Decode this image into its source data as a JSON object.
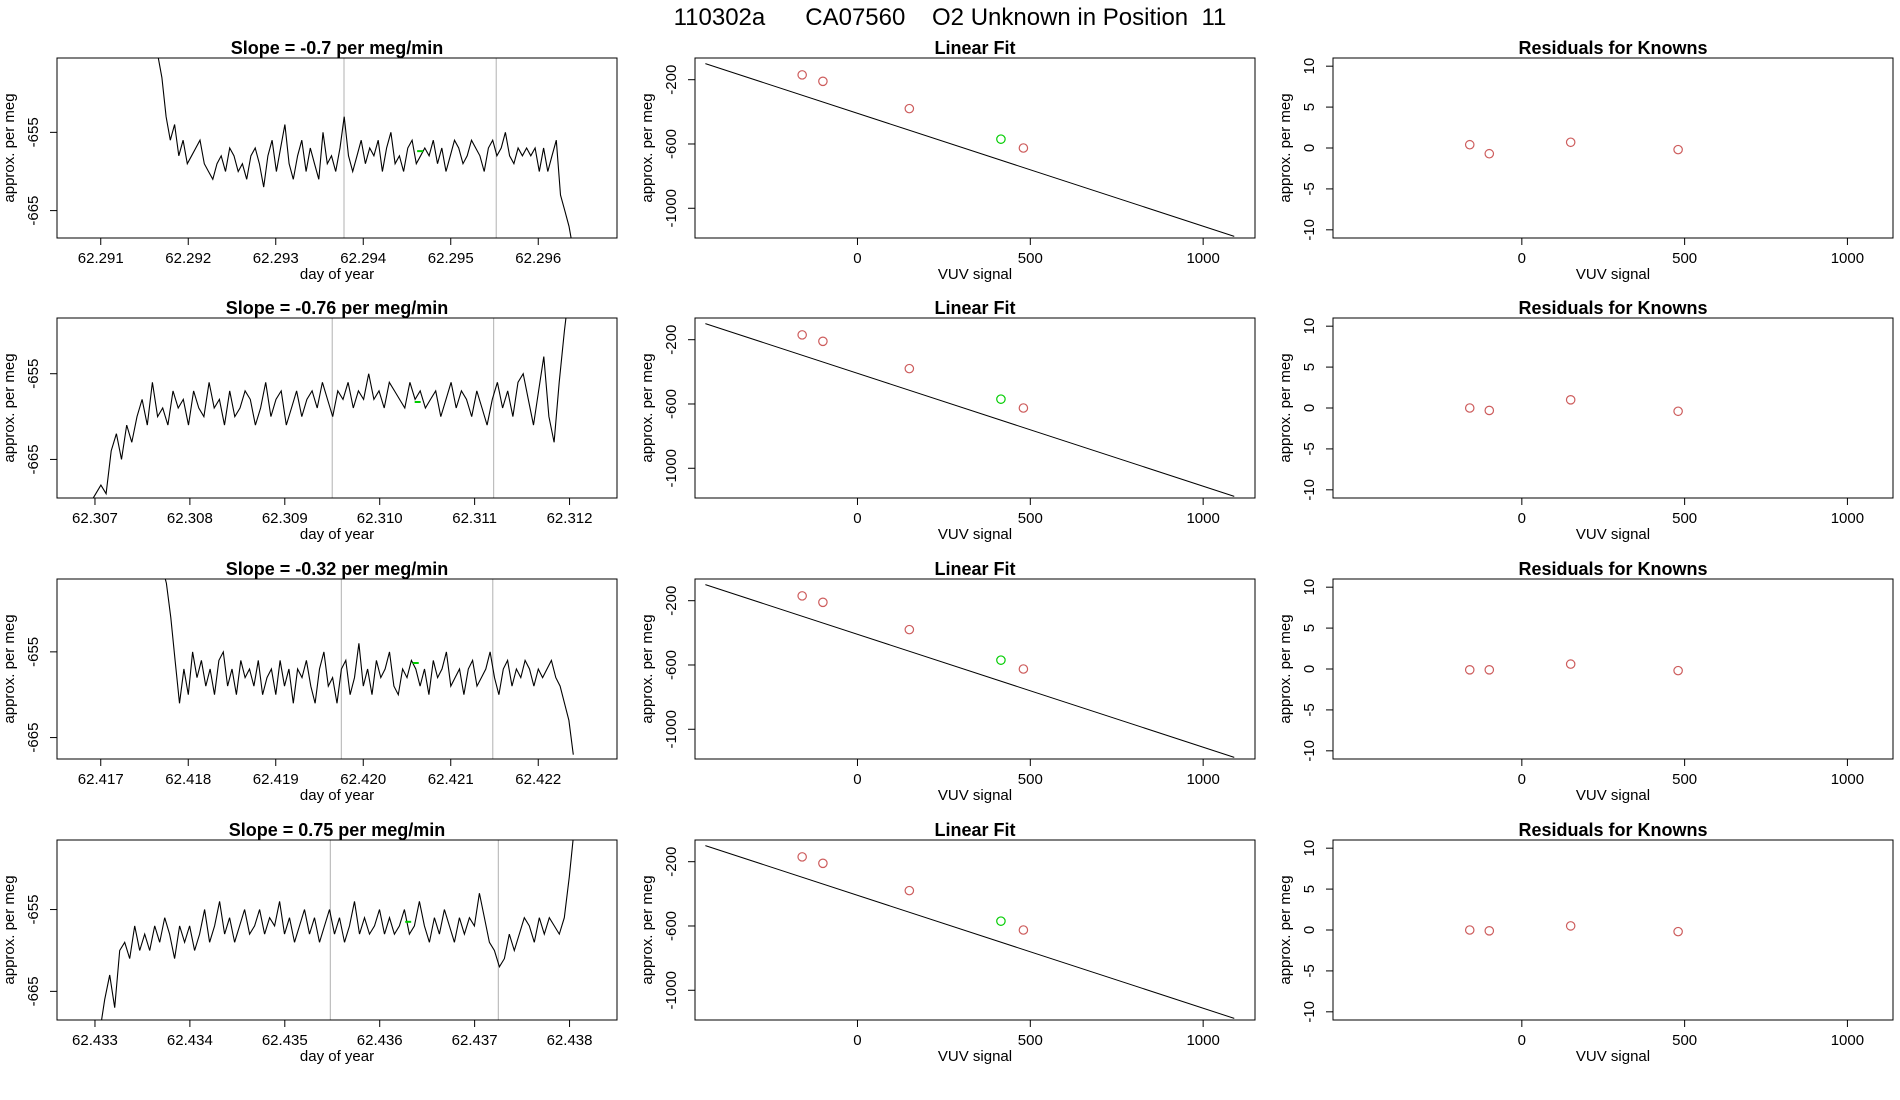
{
  "figure_title": "110302a      CA07560    O2 Unknown in Position  11",
  "colors": {
    "trace": "#000000",
    "vline": "#bebebe",
    "known": "#cd5c5c",
    "unknown": "#00cc00",
    "fitline": "#000000"
  },
  "chart_data": [
    {
      "type": "line",
      "title": "Slope =  -0.7  per meg/min",
      "xlabel": "day of year",
      "ylabel": "approx. per meg",
      "xlim": [
        62.2905,
        62.2969
      ],
      "ylim": [
        -668.5,
        -645.5
      ],
      "xticks": [
        "62.291",
        "62.292",
        "62.293",
        "62.294",
        "62.295",
        "62.296"
      ],
      "yticks": [
        "-665",
        "-655"
      ],
      "trace_start": 62.29165,
      "trace_end": 62.2964,
      "vlines": [
        62.29378,
        62.29552
      ],
      "unknown_point": {
        "x": 62.29465,
        "y": -657.4
      },
      "series": [
        {
          "values": [
            -645,
            -648,
            -653,
            -656,
            -654,
            -658,
            -656,
            -659,
            -658,
            -657,
            -656,
            -659,
            -660,
            -661,
            -659,
            -658,
            -660,
            -657,
            -658,
            -660,
            -659,
            -661,
            -658,
            -657,
            -659,
            -662,
            -658,
            -656,
            -660,
            -657,
            -654,
            -659,
            -661,
            -658,
            -656,
            -660,
            -657,
            -659,
            -661,
            -655,
            -659,
            -658,
            -660,
            -657,
            -653,
            -658,
            -660,
            -658,
            -656,
            -659,
            -657,
            -658,
            -656,
            -660,
            -657,
            -655,
            -659,
            -658,
            -660,
            -657,
            -656,
            -659,
            -658,
            -657,
            -658,
            -656,
            -659,
            -657,
            -660,
            -658,
            -656,
            -657,
            -659,
            -658,
            -656,
            -657,
            -658,
            -660,
            -657,
            -656,
            -658,
            -657,
            -655,
            -658,
            -659,
            -657,
            -658,
            -657,
            -658,
            -657,
            -660,
            -657,
            -660,
            -658,
            -656,
            -663,
            -665,
            -667,
            -670
          ]
        }
      ]
    },
    {
      "type": "line",
      "title": "Linear Fit",
      "xlabel": "VUV signal",
      "ylabel": "approx. per meg",
      "xlim": [
        -470,
        1150
      ],
      "ylim": [
        -1185,
        -65
      ],
      "xticks": [
        "0",
        "500",
        "1000"
      ],
      "yticks": [
        "-1000",
        "-600",
        "-200"
      ],
      "fit_line": {
        "x": [
          -440,
          1090
        ],
        "y": [
          -100,
          -1175
        ]
      },
      "knowns": [
        {
          "x": -160,
          "y": -170
        },
        {
          "x": -100,
          "y": -210
        },
        {
          "x": 150,
          "y": -380
        },
        {
          "x": 480,
          "y": -625
        }
      ],
      "unknown": {
        "x": 415,
        "y": -570
      }
    },
    {
      "type": "scatter",
      "title": "Residuals for Knowns",
      "xlabel": "VUV signal",
      "ylabel": "approx. per meg",
      "xlim": [
        -580,
        1140
      ],
      "ylim": [
        -11,
        11
      ],
      "xticks": [
        "0",
        "500",
        "1000"
      ],
      "yticks": [
        "-10",
        "-5",
        "0",
        "5",
        "10"
      ],
      "points": [
        {
          "x": -160,
          "y": 0.4
        },
        {
          "x": -100,
          "y": -0.7
        },
        {
          "x": 150,
          "y": 0.7
        },
        {
          "x": 480,
          "y": -0.2
        }
      ]
    },
    {
      "type": "line",
      "title": "Slope =  -0.76  per meg/min",
      "xlabel": "day of year",
      "ylabel": "approx. per meg",
      "xlim": [
        62.3066,
        62.3125
      ],
      "ylim": [
        -669.5,
        -648.5
      ],
      "xticks": [
        "62.307",
        "62.308",
        "62.309",
        "62.310",
        "62.311",
        "62.312"
      ],
      "yticks": [
        "-665",
        "-655"
      ],
      "trace_start": 62.3069,
      "trace_end": 62.312,
      "vlines": [
        62.3095,
        62.3112
      ],
      "unknown_point": {
        "x": 62.3104,
        "y": -658.3
      },
      "series": [
        {
          "values": [
            -670,
            -670,
            -669,
            -668,
            -669,
            -664,
            -662,
            -665,
            -661,
            -663,
            -660,
            -658,
            -661,
            -656,
            -660,
            -659,
            -661,
            -657,
            -659,
            -658,
            -661,
            -657,
            -659,
            -660,
            -656,
            -659,
            -658,
            -661,
            -657,
            -660,
            -659,
            -657,
            -658,
            -661,
            -659,
            -656,
            -660,
            -658,
            -657,
            -661,
            -659,
            -657,
            -660,
            -658,
            -657,
            -659,
            -656,
            -658,
            -660,
            -657,
            -658,
            -656,
            -659,
            -657,
            -658,
            -655,
            -658,
            -657,
            -659,
            -656,
            -657,
            -658,
            -659,
            -656,
            -658,
            -657,
            -659,
            -658,
            -657,
            -660,
            -658,
            -656,
            -659,
            -657,
            -658,
            -660,
            -657,
            -659,
            -661,
            -658,
            -656,
            -659,
            -657,
            -660,
            -656,
            -655,
            -658,
            -661,
            -657,
            -653,
            -660,
            -663,
            -656,
            -650,
            -645
          ]
        }
      ]
    },
    {
      "type": "line",
      "title": "Linear Fit",
      "xlabel": "VUV signal",
      "ylabel": "approx. per meg",
      "xlim": [
        -470,
        1150
      ],
      "ylim": [
        -1185,
        -65
      ],
      "xticks": [
        "0",
        "500",
        "1000"
      ],
      "yticks": [
        "-1000",
        "-600",
        "-200"
      ],
      "fit_line": {
        "x": [
          -440,
          1090
        ],
        "y": [
          -100,
          -1175
        ]
      },
      "knowns": [
        {
          "x": -160,
          "y": -170
        },
        {
          "x": -100,
          "y": -210
        },
        {
          "x": 150,
          "y": -380
        },
        {
          "x": 480,
          "y": -625
        }
      ],
      "unknown": {
        "x": 415,
        "y": -570
      }
    },
    {
      "type": "scatter",
      "title": "Residuals for Knowns",
      "xlabel": "VUV signal",
      "ylabel": "approx. per meg",
      "xlim": [
        -580,
        1140
      ],
      "ylim": [
        -11,
        11
      ],
      "xticks": [
        "0",
        "500",
        "1000"
      ],
      "yticks": [
        "-10",
        "-5",
        "0",
        "5",
        "10"
      ],
      "points": [
        {
          "x": -160,
          "y": 0.0
        },
        {
          "x": -100,
          "y": -0.3
        },
        {
          "x": 150,
          "y": 1.0
        },
        {
          "x": 480,
          "y": -0.4
        }
      ]
    },
    {
      "type": "line",
      "title": "Slope =  -0.32  per meg/min",
      "xlabel": "day of year",
      "ylabel": "approx. per meg",
      "xlim": [
        62.4165,
        62.4229
      ],
      "ylim": [
        -667.5,
        -646.5
      ],
      "xticks": [
        "62.417",
        "62.418",
        "62.419",
        "62.420",
        "62.421",
        "62.422"
      ],
      "yticks": [
        "-665",
        "-655"
      ],
      "trace_start": 62.4177,
      "trace_end": 62.4224,
      "vlines": [
        62.41975,
        62.42148
      ],
      "unknown_point": {
        "x": 62.4206,
        "y": -656.3
      },
      "series": [
        {
          "values": [
            -645,
            -647,
            -651,
            -656,
            -661,
            -657,
            -660,
            -655,
            -658,
            -656,
            -659,
            -657,
            -660,
            -656,
            -655,
            -659,
            -657,
            -660,
            -656,
            -658,
            -657,
            -659,
            -656,
            -660,
            -658,
            -657,
            -660,
            -656,
            -659,
            -657,
            -661,
            -657,
            -658,
            -656,
            -659,
            -661,
            -657,
            -655,
            -659,
            -658,
            -661,
            -657,
            -656,
            -660,
            -658,
            -654,
            -659,
            -657,
            -660,
            -656,
            -658,
            -657,
            -655,
            -659,
            -660,
            -657,
            -658,
            -656,
            -657,
            -659,
            -657,
            -660,
            -656,
            -658,
            -657,
            -655,
            -659,
            -658,
            -657,
            -660,
            -657,
            -656,
            -659,
            -658,
            -657,
            -655,
            -658,
            -660,
            -657,
            -656,
            -659,
            -657,
            -658,
            -656,
            -657,
            -659,
            -657,
            -658,
            -657,
            -656,
            -658,
            -659,
            -661,
            -663,
            -667
          ]
        }
      ]
    },
    {
      "type": "line",
      "title": "Linear Fit",
      "xlabel": "VUV signal",
      "ylabel": "approx. per meg",
      "xlim": [
        -470,
        1150
      ],
      "ylim": [
        -1185,
        -65
      ],
      "xticks": [
        "0",
        "500",
        "1000"
      ],
      "yticks": [
        "-1000",
        "-600",
        "-200"
      ],
      "fit_line": {
        "x": [
          -440,
          1090
        ],
        "y": [
          -100,
          -1175
        ]
      },
      "knowns": [
        {
          "x": -160,
          "y": -170
        },
        {
          "x": -100,
          "y": -210
        },
        {
          "x": 150,
          "y": -380
        },
        {
          "x": 480,
          "y": -625
        }
      ],
      "unknown": {
        "x": 415,
        "y": -570
      }
    },
    {
      "type": "scatter",
      "title": "Residuals for Knowns",
      "xlabel": "VUV signal",
      "ylabel": "approx. per meg",
      "xlim": [
        -580,
        1140
      ],
      "ylim": [
        -11,
        11
      ],
      "xticks": [
        "0",
        "500",
        "1000"
      ],
      "yticks": [
        "-10",
        "-5",
        "0",
        "5",
        "10"
      ],
      "points": [
        {
          "x": -160,
          "y": -0.1
        },
        {
          "x": -100,
          "y": -0.1
        },
        {
          "x": 150,
          "y": 0.6
        },
        {
          "x": 480,
          "y": -0.2
        }
      ]
    },
    {
      "type": "line",
      "title": "Slope =  0.75  per meg/min",
      "xlabel": "day of year",
      "ylabel": "approx. per meg",
      "xlim": [
        62.4326,
        62.4385
      ],
      "ylim": [
        -668.5,
        -646.5
      ],
      "xticks": [
        "62.433",
        "62.434",
        "62.435",
        "62.436",
        "62.437",
        "62.438"
      ],
      "yticks": [
        "-665",
        "-655"
      ],
      "trace_start": 62.43305,
      "trace_end": 62.43805,
      "vlines": [
        62.43548,
        62.43725
      ],
      "unknown_point": {
        "x": 62.4363,
        "y": -656.5
      },
      "series": [
        {
          "values": [
            -670,
            -666,
            -663,
            -667,
            -660,
            -659,
            -661,
            -657,
            -660,
            -658,
            -660,
            -657,
            -659,
            -656,
            -658,
            -661,
            -657,
            -659,
            -657,
            -660,
            -658,
            -655,
            -659,
            -657,
            -654,
            -658,
            -656,
            -659,
            -657,
            -655,
            -658,
            -657,
            -655,
            -658,
            -656,
            -657,
            -654,
            -658,
            -656,
            -659,
            -657,
            -655,
            -658,
            -656,
            -659,
            -657,
            -655,
            -658,
            -656,
            -659,
            -657,
            -654,
            -658,
            -656,
            -658,
            -657,
            -655,
            -658,
            -656,
            -658,
            -657,
            -655,
            -658,
            -657,
            -654,
            -657,
            -659,
            -656,
            -658,
            -655,
            -657,
            -659,
            -656,
            -658,
            -656,
            -657,
            -653,
            -656,
            -659,
            -660,
            -662,
            -661,
            -658,
            -660,
            -658,
            -656,
            -657,
            -659,
            -656,
            -658,
            -656,
            -657,
            -658,
            -656,
            -651,
            -645
          ]
        }
      ]
    },
    {
      "type": "line",
      "title": "Linear Fit",
      "xlabel": "VUV signal",
      "ylabel": "approx. per meg",
      "xlim": [
        -470,
        1150
      ],
      "ylim": [
        -1185,
        -65
      ],
      "xticks": [
        "0",
        "500",
        "1000"
      ],
      "yticks": [
        "-1000",
        "-600",
        "-200"
      ],
      "fit_line": {
        "x": [
          -440,
          1090
        ],
        "y": [
          -100,
          -1175
        ]
      },
      "knowns": [
        {
          "x": -160,
          "y": -170
        },
        {
          "x": -100,
          "y": -210
        },
        {
          "x": 150,
          "y": -380
        },
        {
          "x": 480,
          "y": -625
        }
      ],
      "unknown": {
        "x": 415,
        "y": -570
      }
    },
    {
      "type": "scatter",
      "title": "Residuals for Knowns",
      "xlabel": "VUV signal",
      "ylabel": "approx. per meg",
      "xlim": [
        -580,
        1140
      ],
      "ylim": [
        -11,
        11
      ],
      "xticks": [
        "0",
        "500",
        "1000"
      ],
      "yticks": [
        "-10",
        "-5",
        "0",
        "5",
        "10"
      ],
      "points": [
        {
          "x": -160,
          "y": 0.0
        },
        {
          "x": -100,
          "y": -0.1
        },
        {
          "x": 150,
          "y": 0.5
        },
        {
          "x": 480,
          "y": -0.2
        }
      ]
    }
  ]
}
